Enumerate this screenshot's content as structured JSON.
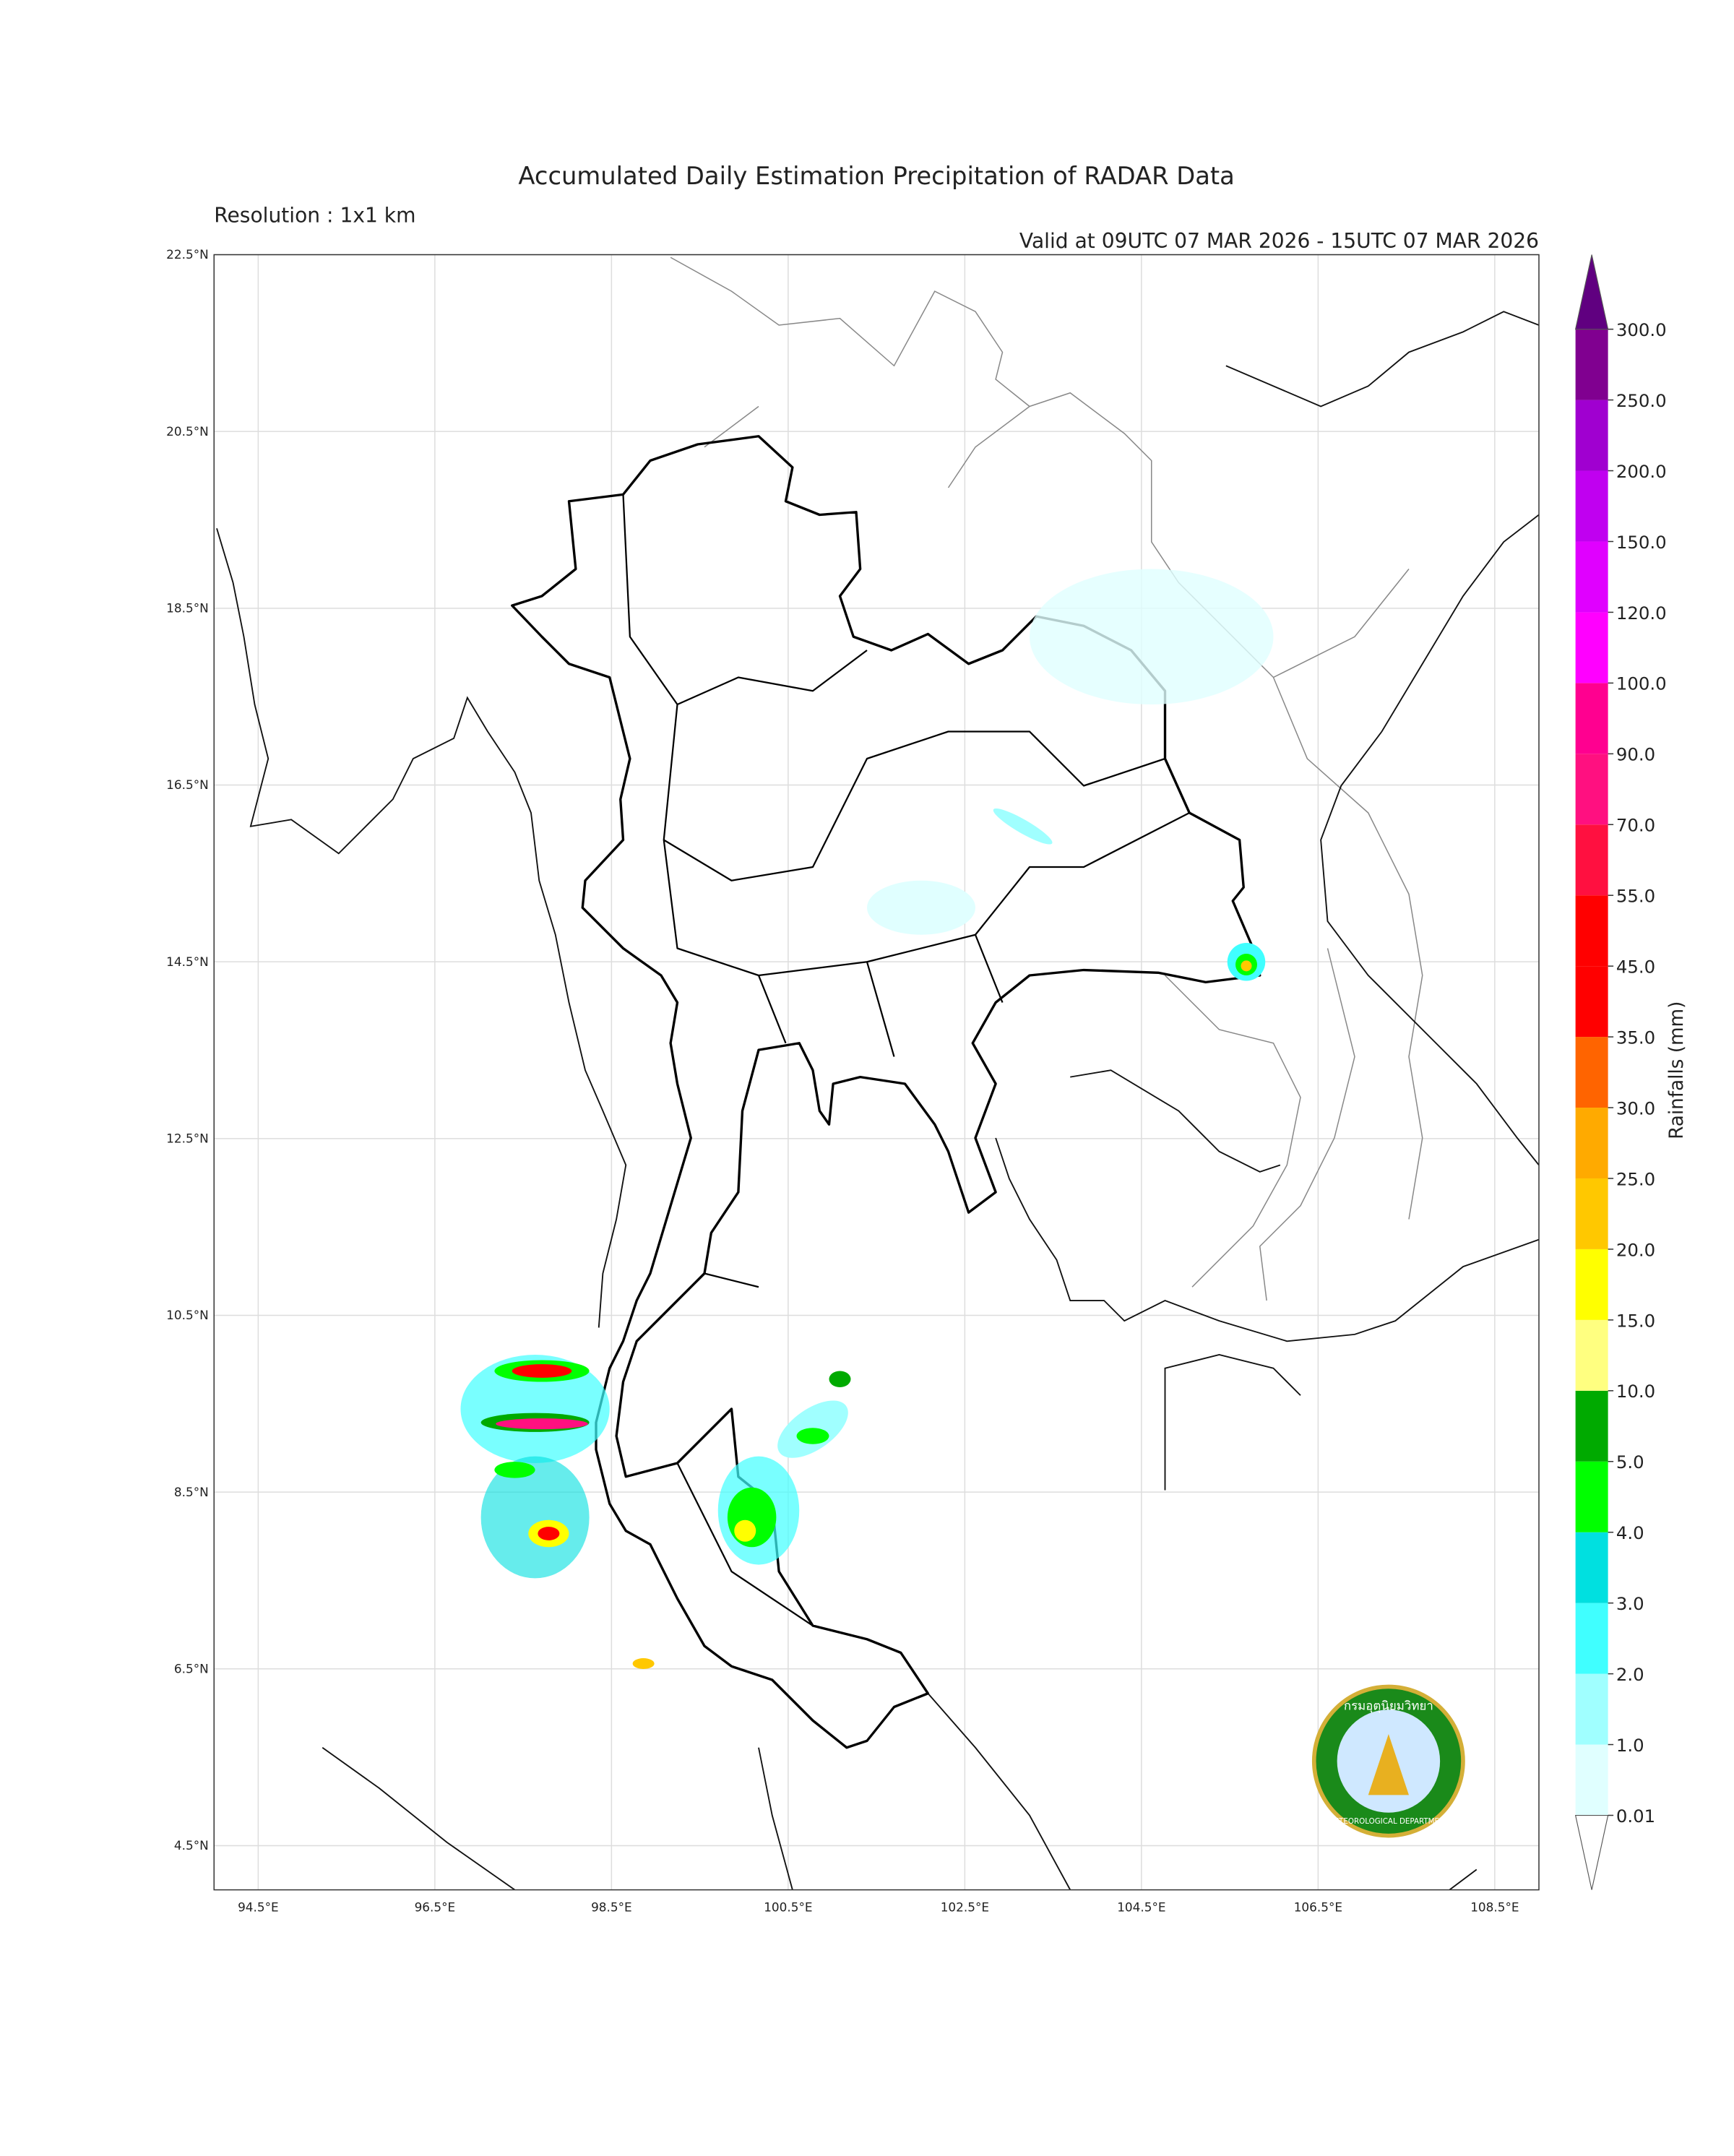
{
  "map": {
    "title": "Accumulated Daily Estimation Precipitation of RADAR Data",
    "subtitle": "Resolution : 1x1 km",
    "valid": "Valid at 09UTC 07 MAR 2026 - 15UTC 07 MAR 2026",
    "xlim": [
      94.0,
      109.0
    ],
    "ylim": [
      4.0,
      22.5
    ],
    "grid": true,
    "xticks": [
      {
        "value": 94.5,
        "label": "94.5°E"
      },
      {
        "value": 96.5,
        "label": "96.5°E"
      },
      {
        "value": 98.5,
        "label": "98.5°E"
      },
      {
        "value": 100.5,
        "label": "100.5°E"
      },
      {
        "value": 102.5,
        "label": "102.5°E"
      },
      {
        "value": 104.5,
        "label": "104.5°E"
      },
      {
        "value": 106.5,
        "label": "106.5°E"
      },
      {
        "value": 108.5,
        "label": "108.5°E"
      }
    ],
    "yticks": [
      {
        "value": 4.5,
        "label": "4.5°N"
      },
      {
        "value": 6.5,
        "label": "6.5°N"
      },
      {
        "value": 8.5,
        "label": "8.5°N"
      },
      {
        "value": 10.5,
        "label": "10.5°N"
      },
      {
        "value": 12.5,
        "label": "12.5°N"
      },
      {
        "value": 14.5,
        "label": "14.5°N"
      },
      {
        "value": 16.5,
        "label": "16.5°N"
      },
      {
        "value": 18.5,
        "label": "18.5°N"
      },
      {
        "value": 20.5,
        "label": "20.5°N"
      },
      {
        "value": 22.5,
        "label": "22.5°N"
      }
    ],
    "colorbar": {
      "label": "Rainfalls (mm)",
      "levels": [
        0.01,
        {
          "value": 1,
          "label": "1.0"
        },
        {
          "value": 2,
          "label": "2.0"
        },
        {
          "value": 3,
          "label": "3.0"
        },
        {
          "value": 4,
          "label": "4.0"
        },
        {
          "value": 5,
          "label": "5.0"
        },
        {
          "value": 10,
          "label": "10.0"
        },
        {
          "value": 15,
          "label": "15.0"
        },
        {
          "value": 20,
          "label": "20.0"
        },
        {
          "value": 25,
          "label": "25.0"
        },
        {
          "value": 30,
          "label": "30.0"
        },
        {
          "value": 35,
          "label": "35.0"
        },
        {
          "value": 45,
          "label": "45.0"
        },
        {
          "value": 55,
          "label": "55.0"
        },
        {
          "value": 70,
          "label": "70.0"
        },
        {
          "value": 90,
          "label": "90.0"
        },
        {
          "value": 100,
          "label": "100.0"
        },
        {
          "value": 120,
          "label": "120.0"
        },
        {
          "value": 150,
          "label": "150.0"
        },
        {
          "value": 200,
          "label": "200.0"
        },
        {
          "value": 250,
          "label": "250.0"
        },
        {
          "value": 300,
          "label": "300.0"
        }
      ],
      "colors": [
        "#e0ffff",
        "#a0ffff",
        "#40ffff",
        "#00e0e0",
        "#00ff00",
        "#00aa00",
        "#ffff80",
        "#ffff00",
        "#ffc800",
        "#ffaa00",
        "#ff6400",
        "#ff0000",
        "#ff0000",
        "#ff1040",
        "#ff1080",
        "#ff0090",
        "#ff00ff",
        "#e000ff",
        "#c000f0",
        "#a000d0",
        "#800090"
      ],
      "over_color": "#600080",
      "under_color": "#ffffff"
    },
    "logo": {
      "thai": "กรมอุตุนิยมวิทยา",
      "english": "METEOROLOGICAL DEPARTMENT"
    }
  }
}
